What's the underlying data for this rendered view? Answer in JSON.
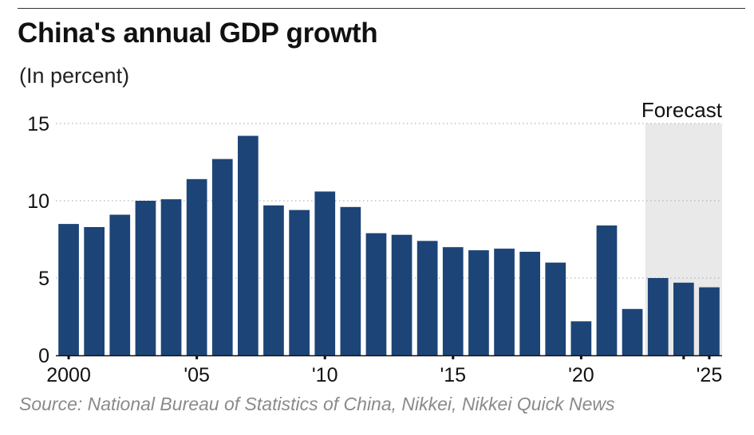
{
  "title": "China's annual GDP growth",
  "subtitle": "(In percent)",
  "source": "Source: National Bureau of Statistics of China, Nikkei, Nikkei Quick News",
  "colors": {
    "bar": "#1d4477",
    "forecast_band": "#e9e9e9",
    "grid": "#b5b5b5"
  },
  "chart_data": {
    "type": "bar",
    "title": "China's annual GDP growth",
    "ylabel": "(In percent)",
    "xlabel": "",
    "categories": [
      2000,
      2001,
      2002,
      2003,
      2004,
      2005,
      2006,
      2007,
      2008,
      2009,
      2010,
      2011,
      2012,
      2013,
      2014,
      2015,
      2016,
      2017,
      2018,
      2019,
      2020,
      2021,
      2022,
      2023,
      2024,
      2025
    ],
    "values": [
      8.5,
      8.3,
      9.1,
      10.0,
      10.1,
      11.4,
      12.7,
      14.2,
      9.7,
      9.4,
      10.6,
      9.6,
      7.9,
      7.8,
      7.4,
      7.0,
      6.8,
      6.9,
      6.7,
      6.0,
      2.2,
      8.4,
      3.0,
      5.0,
      4.7,
      4.4
    ],
    "ylim": [
      0,
      15
    ],
    "yticks": [
      0,
      5,
      10,
      15
    ],
    "xticks": [
      {
        "year": 2000,
        "label": "2000"
      },
      {
        "year": 2005,
        "label": "'05"
      },
      {
        "year": 2010,
        "label": "'10"
      },
      {
        "year": 2015,
        "label": "'15"
      },
      {
        "year": 2020,
        "label": "'20"
      },
      {
        "year": 2025,
        "label": "'25"
      }
    ],
    "minor_tick_years": [
      2024
    ],
    "grid": true,
    "forecast": {
      "label": "Forecast",
      "start_year": 2023,
      "end_year": 2025
    }
  }
}
